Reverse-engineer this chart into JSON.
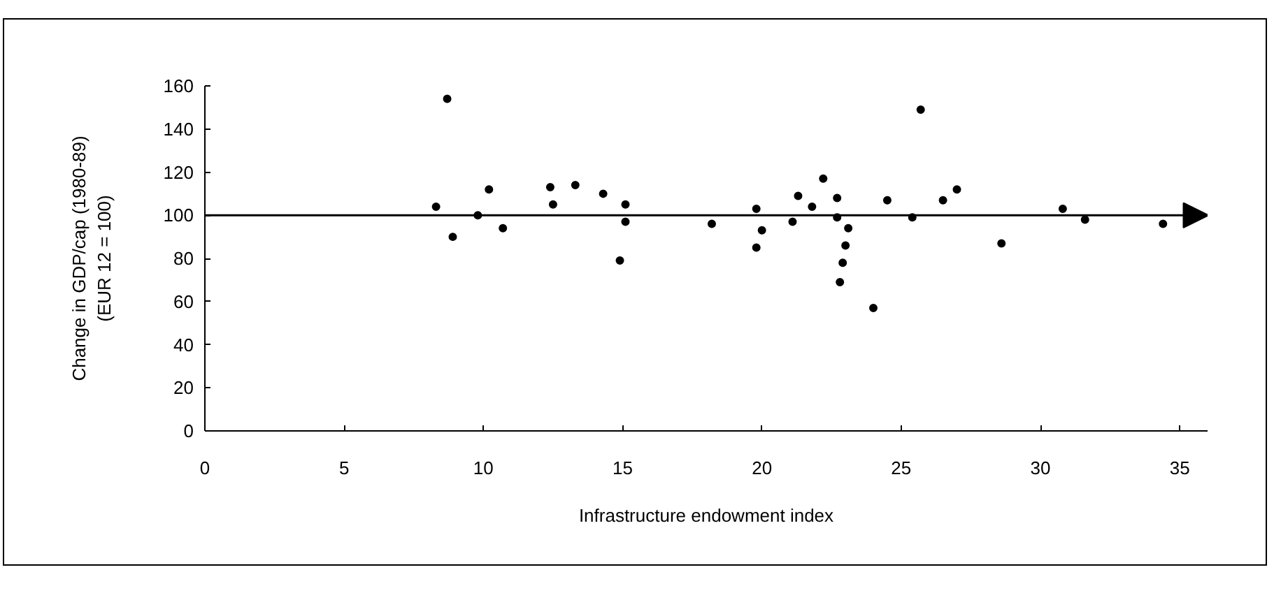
{
  "chart_data": {
    "type": "scatter",
    "xlabel": "Infrastructure endowment index",
    "ylabel": "Change in GDP/cap (1980-89)\n(EUR 12 = 100)",
    "x": [
      8.3,
      8.7,
      8.9,
      9.8,
      10.2,
      10.7,
      12.4,
      12.5,
      13.3,
      14.3,
      14.9,
      15.1,
      15.1,
      18.2,
      19.8,
      19.8,
      20.0,
      21.1,
      21.3,
      21.8,
      22.2,
      22.7,
      22.7,
      22.8,
      22.9,
      23.0,
      23.1,
      24.0,
      24.5,
      25.4,
      25.7,
      26.5,
      27.0,
      28.6,
      30.8,
      31.6,
      34.4
    ],
    "values": [
      104,
      154,
      90,
      100,
      112,
      94,
      113,
      105,
      114,
      110,
      79,
      97,
      105,
      96,
      103,
      85,
      93,
      97,
      109,
      104,
      117,
      108,
      99,
      69,
      78,
      86,
      94,
      57,
      107,
      99,
      149,
      107,
      112,
      87,
      103,
      98,
      96
    ],
    "color": "#000000",
    "marker": "circle",
    "xlim": [
      0,
      36
    ],
    "xticks": [
      0,
      5,
      10,
      15,
      20,
      25,
      30,
      35
    ],
    "ylim": [
      0,
      160
    ],
    "yticks": [
      0,
      20,
      40,
      60,
      80,
      100,
      120,
      140,
      160
    ],
    "ref_lines": [
      {
        "axis": "y",
        "value": 100,
        "color": "#000000"
      }
    ],
    "grid": false
  }
}
